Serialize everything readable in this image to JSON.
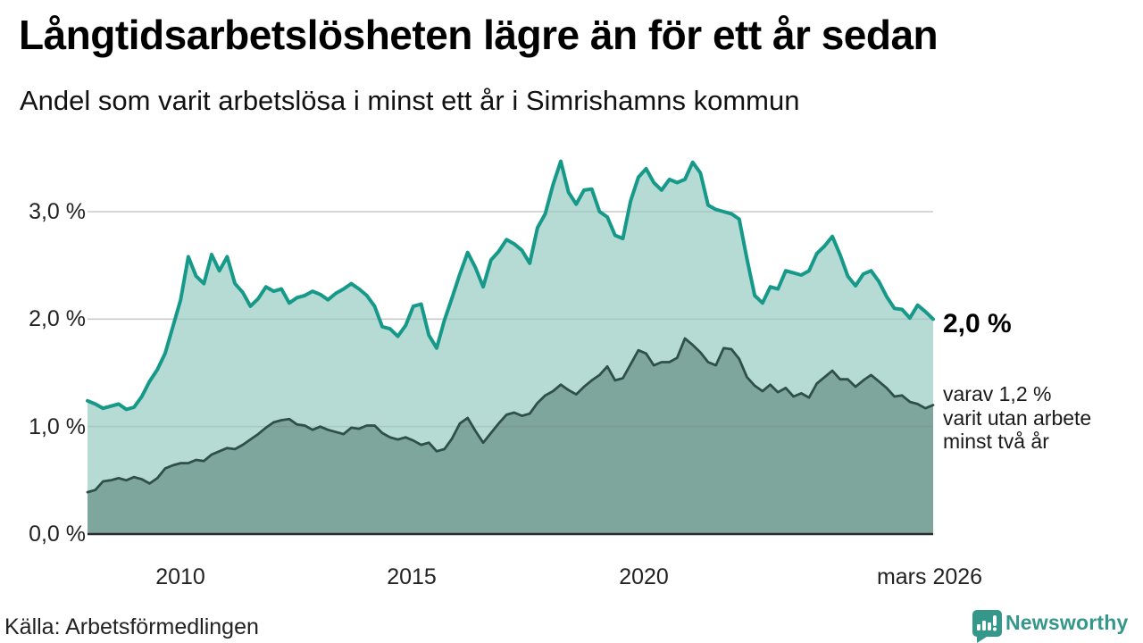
{
  "header": {
    "title": "Långtidsarbetslösheten lägre än för ett år sedan",
    "subtitle": "Andel som varit arbetslösa i minst ett år i Simrishamns kommun"
  },
  "chart_data": {
    "type": "area",
    "title": "Långtidsarbetslösheten lägre än för ett år sedan",
    "subtitle": "Andel som varit arbetslösa i minst ett år i Simrishamns kommun",
    "unit": "%",
    "grid": "horizontal",
    "legend_position": "end-of-line labels, right margin",
    "x_range": [
      2008.0,
      2026.25
    ],
    "x_sampling": "one value per 2 months, jan 2008 – mars 2026",
    "ylim": [
      0,
      3.56
    ],
    "x_axis": {
      "ticks": [
        {
          "year": 2010,
          "label": "2010"
        },
        {
          "year": 2015,
          "label": "2015"
        },
        {
          "year": 2020,
          "label": "2020"
        },
        {
          "year": 2026.17,
          "label": "mars 2026"
        }
      ]
    },
    "y_axis": {
      "ticks": [
        {
          "value": 0,
          "label": "0,0 %"
        },
        {
          "value": 1,
          "label": "1,0 %"
        },
        {
          "value": 2,
          "label": "2,0 %"
        },
        {
          "value": 3,
          "label": "3,0 %"
        }
      ]
    },
    "series": [
      {
        "name": "Andel arbetslösa i minst ett år",
        "line_color": "#17998a",
        "fill_color": "#b5dbd4",
        "end_value": 2.0,
        "end_value_label": "2,0 %",
        "values": [
          1.24,
          1.21,
          1.17,
          1.19,
          1.21,
          1.16,
          1.18,
          1.28,
          1.42,
          1.53,
          1.68,
          1.93,
          2.18,
          2.58,
          2.4,
          2.33,
          2.6,
          2.45,
          2.58,
          2.33,
          2.25,
          2.12,
          2.19,
          2.3,
          2.26,
          2.28,
          2.15,
          2.2,
          2.22,
          2.26,
          2.23,
          2.18,
          2.24,
          2.28,
          2.33,
          2.28,
          2.22,
          2.12,
          1.93,
          1.91,
          1.84,
          1.94,
          2.12,
          2.14,
          1.85,
          1.73,
          1.99,
          2.2,
          2.42,
          2.62,
          2.48,
          2.3,
          2.55,
          2.63,
          2.74,
          2.7,
          2.64,
          2.52,
          2.85,
          2.98,
          3.25,
          3.47,
          3.18,
          3.07,
          3.2,
          3.21,
          3.0,
          2.95,
          2.78,
          2.75,
          3.1,
          3.32,
          3.4,
          3.27,
          3.2,
          3.3,
          3.27,
          3.3,
          3.46,
          3.36,
          3.06,
          3.02,
          3.0,
          2.98,
          2.93,
          2.56,
          2.22,
          2.15,
          2.3,
          2.28,
          2.45,
          2.43,
          2.41,
          2.45,
          2.61,
          2.68,
          2.77,
          2.6,
          2.4,
          2.31,
          2.42,
          2.45,
          2.35,
          2.21,
          2.1,
          2.09,
          2.01,
          2.13,
          2.07,
          2.0
        ]
      },
      {
        "name": "varav arbetslösa i minst två år",
        "line_color": "#2f5049",
        "fill_color": "#7ea69d",
        "end_value": 1.2,
        "end_value_label": "1,2 %",
        "values": [
          0.39,
          0.41,
          0.49,
          0.5,
          0.52,
          0.5,
          0.53,
          0.51,
          0.47,
          0.52,
          0.61,
          0.64,
          0.66,
          0.66,
          0.69,
          0.68,
          0.74,
          0.77,
          0.8,
          0.79,
          0.83,
          0.88,
          0.93,
          0.99,
          1.04,
          1.06,
          1.07,
          1.02,
          1.01,
          0.97,
          1.0,
          0.97,
          0.95,
          0.93,
          0.99,
          0.98,
          1.01,
          1.01,
          0.94,
          0.9,
          0.88,
          0.9,
          0.87,
          0.83,
          0.85,
          0.77,
          0.79,
          0.89,
          1.03,
          1.08,
          0.96,
          0.85,
          0.94,
          1.03,
          1.11,
          1.13,
          1.1,
          1.12,
          1.22,
          1.29,
          1.33,
          1.39,
          1.34,
          1.3,
          1.37,
          1.43,
          1.48,
          1.56,
          1.43,
          1.45,
          1.58,
          1.71,
          1.68,
          1.57,
          1.6,
          1.6,
          1.64,
          1.82,
          1.76,
          1.69,
          1.6,
          1.57,
          1.73,
          1.72,
          1.63,
          1.46,
          1.38,
          1.33,
          1.39,
          1.32,
          1.36,
          1.28,
          1.31,
          1.27,
          1.4,
          1.46,
          1.52,
          1.44,
          1.44,
          1.37,
          1.43,
          1.48,
          1.42,
          1.36,
          1.28,
          1.29,
          1.23,
          1.21,
          1.17,
          1.2
        ]
      }
    ],
    "annotations": {
      "end_label_top": "2,0 %",
      "end_label_lines": [
        "varav 1,2 %",
        "varit utan arbete",
        "minst två år"
      ]
    }
  },
  "footer": {
    "source": "Källa: Arbetsförmedlingen",
    "logo_text": "Newsworthy"
  },
  "colors": {
    "accent_teal": "#17998a",
    "light_fill": "#b5dbd4",
    "dark_line": "#2f5049",
    "dark_fill": "#7ea69d",
    "grid": "#dcdcdc",
    "grid_overlay": "rgba(90,90,90,0.14)",
    "baseline": "#2b2b2b",
    "brand": "#35968a"
  }
}
